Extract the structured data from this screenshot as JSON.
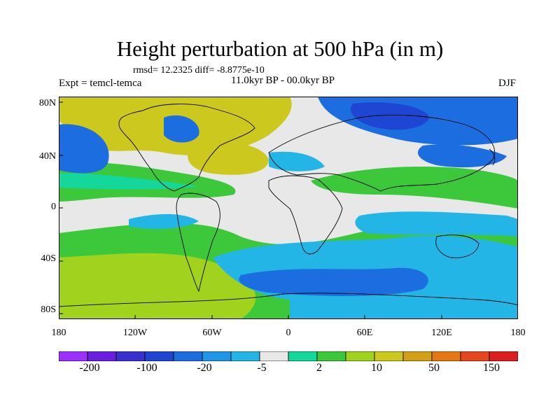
{
  "title": "Height perturbation at 500 hPa (in m)",
  "stats": "rmsd= 12.2325 diff= -8.8775e-10",
  "experiment": "Expt = temcl-temca",
  "period": "11.0kyr BP - 00.0kyr BP",
  "season": "DJF",
  "lat_ticks": [
    "80N",
    "40N",
    "0",
    "40S",
    "80S"
  ],
  "lon_ticks": [
    "180",
    "120W",
    "60W",
    "0",
    "60E",
    "120E",
    "180"
  ],
  "colorbar": {
    "colors": [
      "#9b30ff",
      "#6a1ee0",
      "#3a2fd0",
      "#1e46d2",
      "#1c6ee0",
      "#1f96e6",
      "#22b5e6",
      "#e8e8e8",
      "#14d79b",
      "#3dc83c",
      "#a0d21e",
      "#cdc81e",
      "#d2a014",
      "#e67814",
      "#e6461e",
      "#dc1e1e"
    ],
    "labels": [
      "-200",
      "-100",
      "-20",
      "-5",
      "2",
      "10",
      "50",
      "150"
    ]
  },
  "fills": {
    "green": "#3dc83c",
    "lime": "#a0d21e",
    "olive": "#cdc81e",
    "cyan": "#22b5e6",
    "teal": "#14d79b",
    "blue": "#1e46d2",
    "midblue": "#1c6ee0",
    "grey": "#e8e8e8"
  }
}
